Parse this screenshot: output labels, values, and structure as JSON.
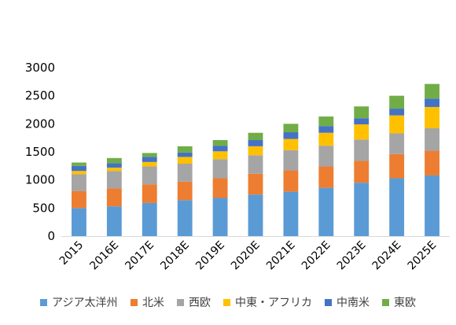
{
  "chart_data": {
    "type": "bar",
    "stacked": true,
    "title": "",
    "xlabel": "",
    "ylabel": "",
    "ylim": [
      0,
      3000
    ],
    "yticks": [
      0,
      500,
      1000,
      1500,
      2000,
      2500,
      3000
    ],
    "grid": false,
    "legend_position": "bottom",
    "categories": [
      "2015",
      "2016E",
      "2017E",
      "2018E",
      "2019E",
      "2020E",
      "2021E",
      "2022E",
      "2023E",
      "2024E",
      "2025E"
    ],
    "series": [
      {
        "name": "アジア太洋州",
        "color": "#5B9BD5",
        "values": [
          500,
          530,
          590,
          640,
          680,
          740,
          790,
          860,
          950,
          1030,
          1080
        ]
      },
      {
        "name": "北米",
        "color": "#ED7D31",
        "values": [
          300,
          320,
          330,
          330,
          350,
          370,
          380,
          380,
          390,
          430,
          440
        ]
      },
      {
        "name": "西欧",
        "color": "#A5A5A5",
        "values": [
          300,
          310,
          320,
          320,
          340,
          330,
          360,
          370,
          380,
          370,
          400
        ]
      },
      {
        "name": "中東・アフリカ",
        "color": "#FFC000",
        "values": [
          60,
          60,
          80,
          120,
          140,
          160,
          200,
          230,
          270,
          320,
          380
        ]
      },
      {
        "name": "中南米",
        "color": "#4472C4",
        "values": [
          90,
          80,
          90,
          80,
          100,
          110,
          120,
          120,
          110,
          120,
          150
        ]
      },
      {
        "name": "東欧",
        "color": "#70AD47",
        "values": [
          60,
          90,
          70,
          110,
          100,
          130,
          150,
          170,
          210,
          230,
          260
        ]
      }
    ]
  }
}
